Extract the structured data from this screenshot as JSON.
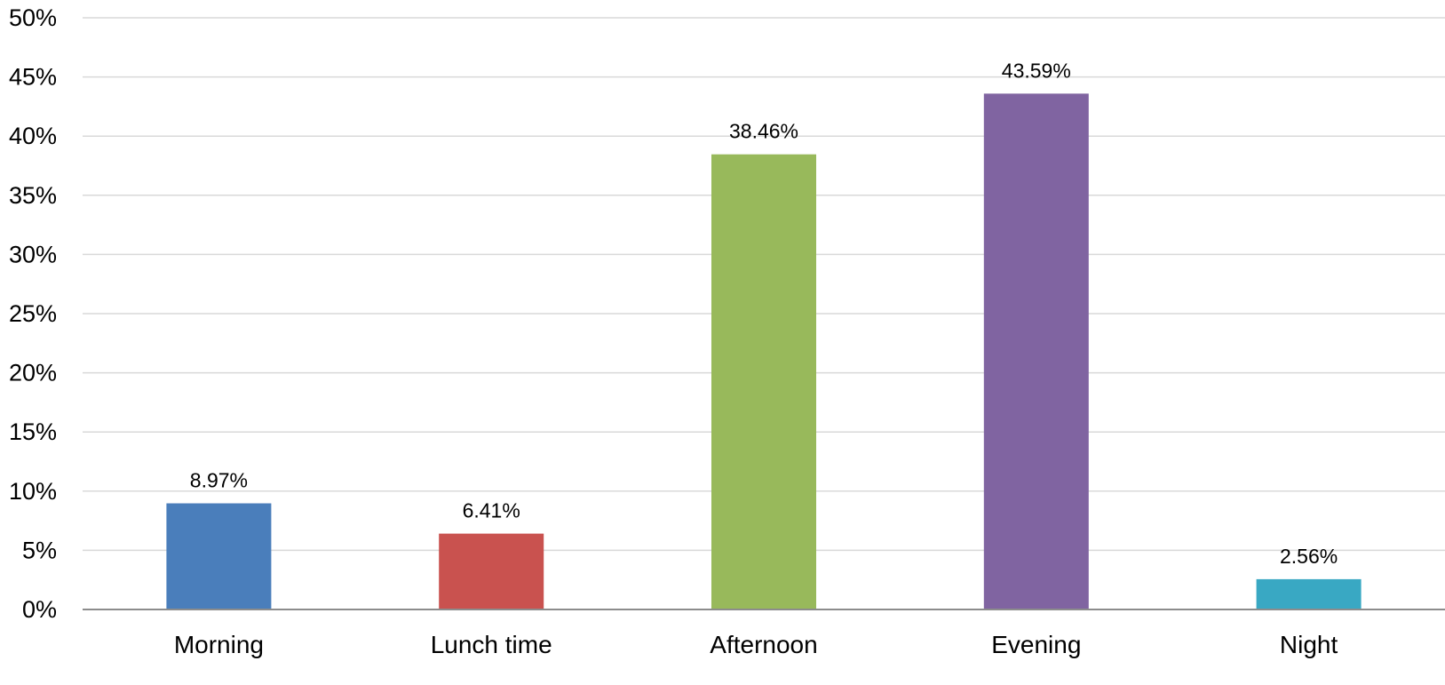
{
  "chart_data": {
    "type": "bar",
    "title": "",
    "xlabel": "",
    "ylabel": "",
    "categories": [
      "Morning",
      "Lunch time",
      "Afternoon",
      "Evening",
      "Night"
    ],
    "values": [
      8.97,
      6.41,
      38.46,
      43.59,
      2.56
    ],
    "value_labels": [
      "8.97%",
      "6.41%",
      "38.46%",
      "43.59%",
      "2.56%"
    ],
    "colors": [
      "#4a7ebb",
      "#c9524f",
      "#98b95b",
      "#8064a1",
      "#39a8c3"
    ],
    "ylim": [
      0,
      50
    ],
    "yticks": [
      0,
      5,
      10,
      15,
      20,
      25,
      30,
      35,
      40,
      45,
      50
    ],
    "ytick_labels": [
      "0%",
      "5%",
      "10%",
      "15%",
      "20%",
      "25%",
      "30%",
      "35%",
      "40%",
      "45%",
      "50%"
    ],
    "grid": true,
    "legend": "none"
  }
}
